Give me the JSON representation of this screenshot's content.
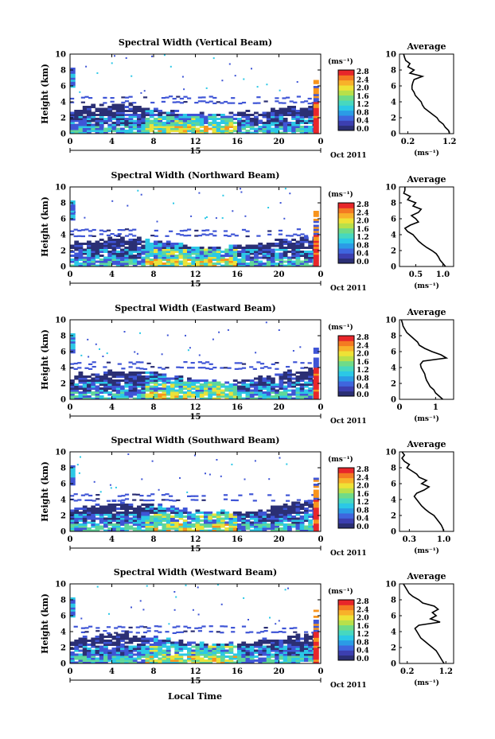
{
  "x_ticks": [
    "0",
    "4",
    "8",
    "12",
    "16",
    "20",
    "0"
  ],
  "day_label": "15",
  "date_label": "Oct 2011",
  "xlabel": "Local Time",
  "ylabel": "Height (km)",
  "units": "(ms⁻¹)",
  "average_title": "Average",
  "colorbar_ticks": [
    "0.0",
    "0.4",
    "0.8",
    "1.2",
    "1.6",
    "2.0",
    "2.4",
    "2.8"
  ],
  "colors": {
    "dark": "#2b2f74",
    "blue": "#3f55d6",
    "cyan": "#2bc8e6",
    "green": "#5fd79a",
    "yellow": "#eae23a",
    "orange": "#f7941d",
    "red": "#e8262a"
  },
  "chart_data": [
    {
      "type": "heatmap",
      "title": "Spectral Width (Vertical Beam)",
      "x_ticks": [
        "0",
        "4",
        "8",
        "12",
        "16",
        "20",
        "0"
      ],
      "y_ticks": [
        "0",
        "2",
        "4",
        "6",
        "8",
        "10"
      ],
      "ylim": [
        0,
        10
      ],
      "colorbar_range": [
        0.0,
        2.8
      ],
      "average": {
        "title": "Average",
        "x_ticks": [
          "0.2",
          "1.2"
        ],
        "xlim": [
          0.0,
          1.3
        ],
        "profile": [
          [
            0,
            1.2
          ],
          [
            0.4,
            1.18
          ],
          [
            0.8,
            1.1
          ],
          [
            1.2,
            1.05
          ],
          [
            1.6,
            0.95
          ],
          [
            2.0,
            0.9
          ],
          [
            2.4,
            0.8
          ],
          [
            2.8,
            0.7
          ],
          [
            3.2,
            0.6
          ],
          [
            3.6,
            0.55
          ],
          [
            4.0,
            0.52
          ],
          [
            4.4,
            0.45
          ],
          [
            4.8,
            0.38
          ],
          [
            5.2,
            0.35
          ],
          [
            5.6,
            0.3
          ],
          [
            6.0,
            0.3
          ],
          [
            6.4,
            0.32
          ],
          [
            6.8,
            0.35
          ],
          [
            7.2,
            0.55
          ],
          [
            7.6,
            0.25
          ],
          [
            8.0,
            0.35
          ],
          [
            8.4,
            0.2
          ],
          [
            8.8,
            0.25
          ],
          [
            9.2,
            0.15
          ],
          [
            9.6,
            0.12
          ],
          [
            10,
            0.1
          ]
        ]
      }
    },
    {
      "type": "heatmap",
      "title": "Spectral Width (Northward Beam)",
      "x_ticks": [
        "0",
        "4",
        "8",
        "12",
        "16",
        "20",
        "0"
      ],
      "y_ticks": [
        "0",
        "2",
        "4",
        "6",
        "8",
        "10"
      ],
      "ylim": [
        0,
        10
      ],
      "colorbar_range": [
        0.0,
        2.8
      ],
      "average": {
        "title": "Average",
        "x_ticks": [
          "0.5",
          "1.0"
        ],
        "xlim": [
          0.2,
          1.2
        ],
        "profile": [
          [
            0,
            1.05
          ],
          [
            0.4,
            1.0
          ],
          [
            0.8,
            0.95
          ],
          [
            1.2,
            0.92
          ],
          [
            1.6,
            0.88
          ],
          [
            2.0,
            0.8
          ],
          [
            2.4,
            0.7
          ],
          [
            2.8,
            0.62
          ],
          [
            3.2,
            0.55
          ],
          [
            3.6,
            0.5
          ],
          [
            4.0,
            0.45
          ],
          [
            4.4,
            0.35
          ],
          [
            4.8,
            0.3
          ],
          [
            5.2,
            0.4
          ],
          [
            5.6,
            0.55
          ],
          [
            6.0,
            0.5
          ],
          [
            6.4,
            0.42
          ],
          [
            6.8,
            0.55
          ],
          [
            7.2,
            0.6
          ],
          [
            7.6,
            0.45
          ],
          [
            8.0,
            0.5
          ],
          [
            8.4,
            0.35
          ],
          [
            8.8,
            0.4
          ],
          [
            9.2,
            0.28
          ],
          [
            9.6,
            0.3
          ],
          [
            10,
            0.3
          ]
        ]
      }
    },
    {
      "type": "heatmap",
      "title": "Spectral Width (Eastward Beam)",
      "x_ticks": [
        "0",
        "4",
        "8",
        "12",
        "16",
        "20",
        "0"
      ],
      "y_ticks": [
        "0",
        "2",
        "4",
        "6",
        "8",
        "10"
      ],
      "ylim": [
        0,
        10
      ],
      "colorbar_range": [
        0.0,
        2.8
      ],
      "average": {
        "title": "Average",
        "x_ticks": [
          "0",
          "1"
        ],
        "xlim": [
          0,
          1.5
        ],
        "profile": [
          [
            0,
            1.2
          ],
          [
            0.4,
            1.1
          ],
          [
            0.8,
            1.0
          ],
          [
            1.2,
            0.95
          ],
          [
            1.6,
            0.85
          ],
          [
            2.0,
            0.8
          ],
          [
            2.4,
            0.75
          ],
          [
            2.8,
            0.72
          ],
          [
            3.2,
            0.7
          ],
          [
            3.6,
            0.65
          ],
          [
            4.0,
            0.6
          ],
          [
            4.4,
            0.58
          ],
          [
            4.8,
            0.65
          ],
          [
            5.2,
            1.3
          ],
          [
            5.6,
            1.15
          ],
          [
            6.0,
            0.9
          ],
          [
            6.4,
            0.7
          ],
          [
            6.8,
            0.55
          ],
          [
            7.2,
            0.5
          ],
          [
            7.6,
            0.4
          ],
          [
            8.0,
            0.3
          ],
          [
            8.4,
            0.2
          ],
          [
            8.8,
            0.15
          ],
          [
            9.2,
            0.1
          ],
          [
            9.6,
            0.08
          ],
          [
            10,
            0.05
          ]
        ]
      }
    },
    {
      "type": "heatmap",
      "title": "Spectral Width (Southward Beam)",
      "x_ticks": [
        "0",
        "4",
        "8",
        "12",
        "16",
        "20",
        "0"
      ],
      "y_ticks": [
        "0",
        "2",
        "4",
        "6",
        "8",
        "10"
      ],
      "ylim": [
        0,
        10
      ],
      "colorbar_range": [
        0.0,
        2.8
      ],
      "average": {
        "title": "Average",
        "x_ticks": [
          "0.3",
          "1.0"
        ],
        "xlim": [
          0.1,
          1.2
        ],
        "profile": [
          [
            0,
            1.0
          ],
          [
            0.4,
            0.98
          ],
          [
            0.8,
            0.95
          ],
          [
            1.2,
            0.9
          ],
          [
            1.6,
            0.85
          ],
          [
            2.0,
            0.8
          ],
          [
            2.4,
            0.7
          ],
          [
            2.8,
            0.62
          ],
          [
            3.2,
            0.55
          ],
          [
            3.6,
            0.5
          ],
          [
            4.0,
            0.45
          ],
          [
            4.4,
            0.4
          ],
          [
            4.8,
            0.45
          ],
          [
            5.2,
            0.6
          ],
          [
            5.6,
            0.7
          ],
          [
            6.0,
            0.55
          ],
          [
            6.4,
            0.65
          ],
          [
            6.8,
            0.5
          ],
          [
            7.2,
            0.45
          ],
          [
            7.6,
            0.35
          ],
          [
            8.0,
            0.25
          ],
          [
            8.4,
            0.3
          ],
          [
            8.8,
            0.2
          ],
          [
            9.2,
            0.15
          ],
          [
            9.6,
            0.2
          ],
          [
            10,
            0.15
          ]
        ]
      }
    },
    {
      "type": "heatmap",
      "title": "Spectral Width (Westward Beam)",
      "x_ticks": [
        "0",
        "4",
        "8",
        "12",
        "16",
        "20",
        "0"
      ],
      "y_ticks": [
        "0",
        "2",
        "4",
        "6",
        "8",
        "10"
      ],
      "ylim": [
        0,
        10
      ],
      "colorbar_range": [
        0.0,
        2.8
      ],
      "average": {
        "title": "Average",
        "x_ticks": [
          "0.2",
          "1.2"
        ],
        "xlim": [
          0.0,
          1.4
        ],
        "profile": [
          [
            0,
            1.15
          ],
          [
            0.4,
            1.1
          ],
          [
            0.8,
            1.05
          ],
          [
            1.2,
            1.0
          ],
          [
            1.6,
            0.95
          ],
          [
            2.0,
            0.85
          ],
          [
            2.4,
            0.75
          ],
          [
            2.8,
            0.65
          ],
          [
            3.2,
            0.55
          ],
          [
            3.6,
            0.5
          ],
          [
            4.0,
            0.45
          ],
          [
            4.4,
            0.4
          ],
          [
            4.8,
            0.5
          ],
          [
            5.2,
            1.05
          ],
          [
            5.6,
            0.8
          ],
          [
            6.0,
            0.95
          ],
          [
            6.4,
            0.85
          ],
          [
            6.8,
            1.0
          ],
          [
            7.2,
            0.9
          ],
          [
            7.6,
            0.6
          ],
          [
            8.0,
            0.5
          ],
          [
            8.4,
            0.35
          ],
          [
            8.8,
            0.25
          ],
          [
            9.2,
            0.2
          ],
          [
            9.6,
            0.15
          ],
          [
            10,
            0.1
          ]
        ]
      }
    }
  ]
}
